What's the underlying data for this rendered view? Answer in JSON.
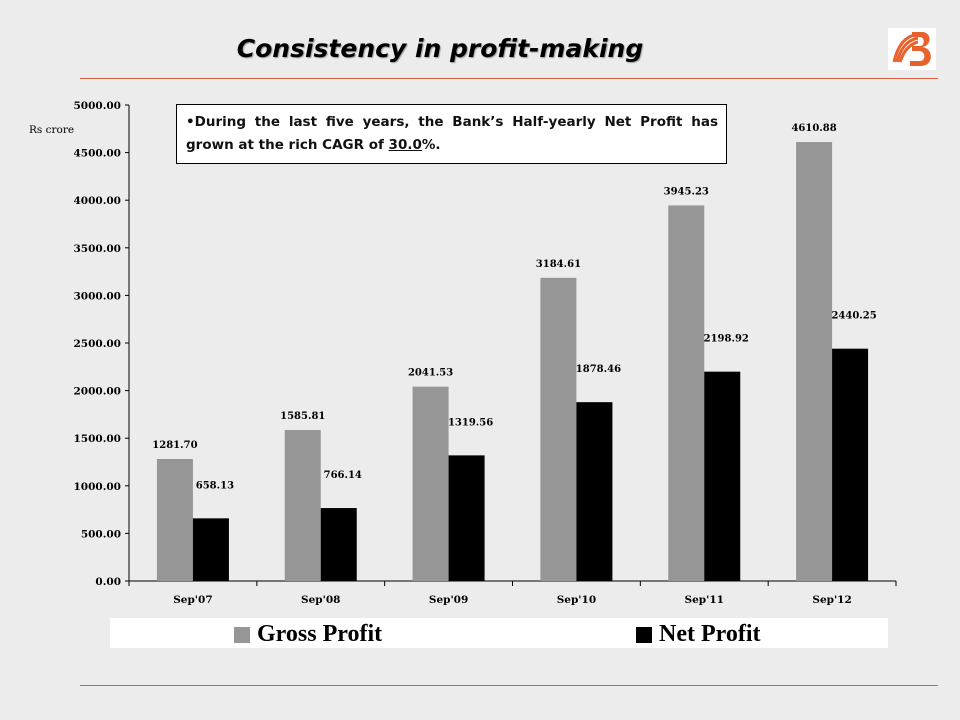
{
  "title": "Consistency in profit-making",
  "callout": {
    "bullet": "•",
    "text_before": "During the last five years, the Bank’s Half-yearly Net Profit has grown at the rich CAGR of ",
    "highlight": "30.0",
    "text_after": "%."
  },
  "legend": {
    "gross": "Gross Profit",
    "net": "Net Profit"
  },
  "colors": {
    "gross": "#969696",
    "net": "#000000",
    "accent": "#d9603f"
  },
  "chart_data": {
    "type": "bar",
    "ylabel": "Rs crore",
    "ylim": [
      0,
      5000
    ],
    "yticks": [
      "0.00",
      "500.00",
      "1000.00",
      "1500.00",
      "2000.00",
      "2500.00",
      "3000.00",
      "3500.00",
      "4000.00",
      "4500.00",
      "5000.00"
    ],
    "categories": [
      "Sep'07",
      "Sep'08",
      "Sep'09",
      "Sep'10",
      "Sep'11",
      "Sep'12"
    ],
    "series": [
      {
        "name": "Gross Profit",
        "values": [
          1281.7,
          1585.81,
          2041.53,
          3184.61,
          3945.23,
          4610.88
        ],
        "labels": [
          "1281.70",
          "1585.81",
          "2041.53",
          "3184.61",
          "3945.23",
          "4610.88"
        ]
      },
      {
        "name": "Net Profit",
        "values": [
          658.13,
          766.14,
          1319.56,
          1878.46,
          2198.92,
          2440.25
        ],
        "labels": [
          "658.13",
          "766.14",
          "1319.56",
          "1878.46",
          "2198.92",
          "2440.25"
        ]
      }
    ]
  }
}
